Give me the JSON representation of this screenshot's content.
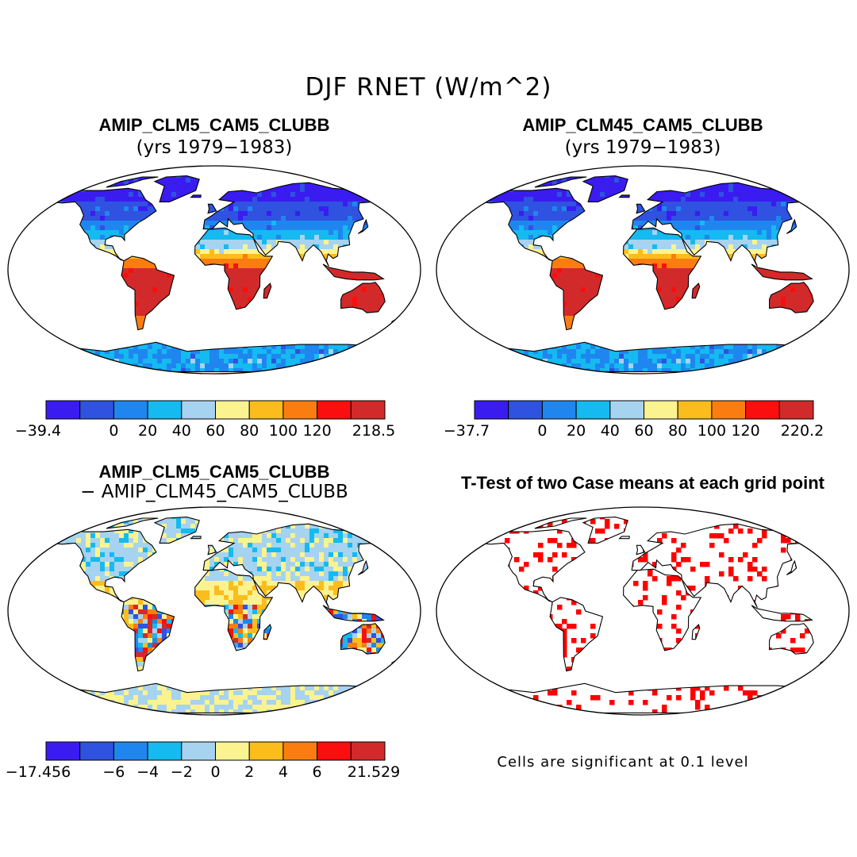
{
  "figure": {
    "title": "DJF RNET (W/m^2)"
  },
  "panels": [
    {
      "id": "case1",
      "title": "AMIP_CLM5_CAM5_CLUBB",
      "subtitle": "(yrs 1979−1983)",
      "colorbar": {
        "min_label": "−39.4",
        "tick_labels": [
          "0",
          "20",
          "40",
          "60",
          "80",
          "100",
          "120"
        ],
        "max_label": "218.5",
        "colors": [
          "#3a1cf0",
          "#2f52e0",
          "#1f86f0",
          "#15baf0",
          "#a6d3ef",
          "#fbf38f",
          "#fbbd1c",
          "#fb7d10",
          "#fb0e0e",
          "#d22a2a"
        ]
      }
    },
    {
      "id": "case2",
      "title": "AMIP_CLM45_CAM5_CLUBB",
      "subtitle": "(yrs 1979−1983)",
      "colorbar": {
        "min_label": "−37.7",
        "tick_labels": [
          "0",
          "20",
          "40",
          "60",
          "80",
          "100",
          "120"
        ],
        "max_label": "220.2",
        "colors": [
          "#3a1cf0",
          "#2f52e0",
          "#1f86f0",
          "#15baf0",
          "#a6d3ef",
          "#fbf38f",
          "#fbbd1c",
          "#fb7d10",
          "#fb0e0e",
          "#d22a2a"
        ]
      }
    },
    {
      "id": "diff",
      "title": "AMIP_CLM5_CAM5_CLUBB",
      "subtitle": "− AMIP_CLM45_CAM5_CLUBB",
      "colorbar": {
        "min_label": "−17.456",
        "tick_labels": [
          "−6",
          "−4",
          "−2",
          "0",
          "2",
          "4",
          "6"
        ],
        "max_label": "21.529",
        "colors": [
          "#3a1cf0",
          "#2f52e0",
          "#1f86f0",
          "#15baf0",
          "#a6d3ef",
          "#fbf38f",
          "#fbbd1c",
          "#fb7d10",
          "#fb0e0e",
          "#d22a2a"
        ]
      }
    },
    {
      "id": "ttest",
      "title": "T-Test of two Case means at each grid point",
      "note": "Cells are significant at 0.1 level",
      "sig_color": "#ff0000"
    }
  ]
}
